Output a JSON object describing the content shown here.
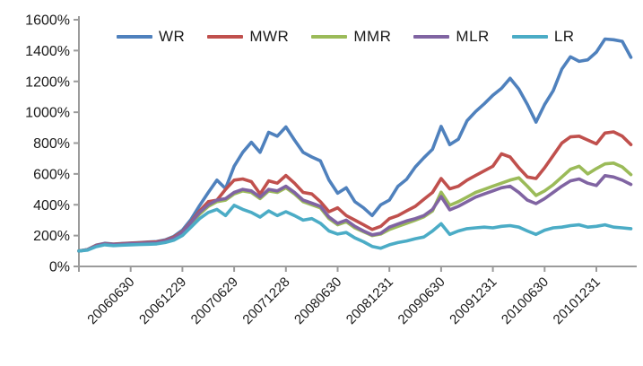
{
  "chart_data": {
    "type": "line",
    "title": "",
    "xlabel": "",
    "ylabel": "",
    "ylim": [
      0,
      1600
    ],
    "ytick_step": 200,
    "ytick_labels": [
      "0%",
      "200%",
      "400%",
      "600%",
      "800%",
      "1000%",
      "1200%",
      "1400%",
      "1600%"
    ],
    "x_tick_labels": [
      "20060630",
      "20061229",
      "20070629",
      "20071228",
      "20080630",
      "20081231",
      "20090630",
      "20091231",
      "20100630",
      "20101231"
    ],
    "x_tick_point_indices": [
      6,
      12,
      18,
      24,
      30,
      36,
      42,
      48,
      54,
      60
    ],
    "n_points": 65,
    "grid": false,
    "legend_position": "top",
    "axis_color": "#9b9b9b",
    "text_color": "#1a1a1a",
    "series": [
      {
        "name": "WR",
        "color": "#4F81BD",
        "values": [
          100,
          110,
          138,
          150,
          145,
          149,
          152,
          155,
          158,
          161,
          172,
          195,
          235,
          305,
          395,
          480,
          560,
          505,
          650,
          740,
          805,
          740,
          870,
          845,
          905,
          820,
          740,
          710,
          685,
          560,
          475,
          510,
          420,
          380,
          330,
          400,
          430,
          520,
          565,
          645,
          705,
          760,
          908,
          790,
          825,
          945,
          1005,
          1055,
          1110,
          1155,
          1220,
          1150,
          1050,
          936,
          1050,
          1140,
          1280,
          1360,
          1330,
          1340,
          1390,
          1475,
          1470,
          1460,
          1356
        ]
      },
      {
        "name": "MWR",
        "color": "#C0504D",
        "values": [
          100,
          109,
          136,
          148,
          143,
          147,
          150,
          153,
          156,
          159,
          168,
          190,
          225,
          290,
          360,
          420,
          430,
          500,
          560,
          567,
          550,
          470,
          555,
          540,
          590,
          540,
          480,
          470,
          420,
          355,
          380,
          330,
          300,
          270,
          240,
          260,
          310,
          330,
          360,
          390,
          436,
          480,
          570,
          503,
          520,
          560,
          590,
          620,
          650,
          730,
          710,
          640,
          580,
          570,
          640,
          720,
          800,
          840,
          845,
          820,
          795,
          865,
          873,
          845,
          790
        ]
      },
      {
        "name": "MMR",
        "color": "#9BBB59",
        "values": [
          100,
          108,
          132,
          145,
          140,
          143,
          146,
          148,
          150,
          152,
          162,
          180,
          215,
          280,
          340,
          390,
          420,
          430,
          470,
          490,
          480,
          440,
          490,
          480,
          510,
          470,
          420,
          400,
          380,
          310,
          270,
          290,
          250,
          225,
          200,
          210,
          240,
          260,
          280,
          300,
          322,
          360,
          482,
          396,
          420,
          450,
          480,
          500,
          520,
          540,
          560,
          575,
          520,
          460,
          490,
          530,
          580,
          630,
          650,
          600,
          635,
          665,
          670,
          645,
          595
        ]
      },
      {
        "name": "MLR",
        "color": "#8064A2",
        "values": [
          100,
          108,
          133,
          146,
          141,
          144,
          147,
          149,
          151,
          153,
          164,
          183,
          220,
          285,
          350,
          400,
          430,
          440,
          480,
          500,
          490,
          450,
          500,
          490,
          520,
          480,
          430,
          410,
          390,
          320,
          280,
          300,
          260,
          230,
          205,
          215,
          255,
          275,
          295,
          310,
          330,
          370,
          453,
          367,
          390,
          420,
          450,
          470,
          490,
          510,
          520,
          480,
          430,
          407,
          440,
          480,
          520,
          555,
          567,
          540,
          525,
          589,
          580,
          560,
          532
        ]
      },
      {
        "name": "LR",
        "color": "#4BACC6",
        "values": [
          100,
          106,
          128,
          140,
          135,
          138,
          140,
          142,
          144,
          146,
          155,
          170,
          200,
          255,
          310,
          350,
          370,
          330,
          396,
          370,
          350,
          320,
          360,
          330,
          355,
          330,
          300,
          310,
          280,
          230,
          210,
          220,
          185,
          160,
          130,
          118,
          140,
          155,
          165,
          180,
          191,
          230,
          277,
          208,
          230,
          245,
          250,
          255,
          250,
          260,
          265,
          255,
          230,
          208,
          235,
          250,
          255,
          265,
          270,
          255,
          260,
          270,
          255,
          250,
          245
        ]
      }
    ]
  },
  "legend": {
    "entries": [
      {
        "label": "WR"
      },
      {
        "label": "MWR"
      },
      {
        "label": "MMR"
      },
      {
        "label": "MLR"
      },
      {
        "label": "LR"
      }
    ]
  }
}
